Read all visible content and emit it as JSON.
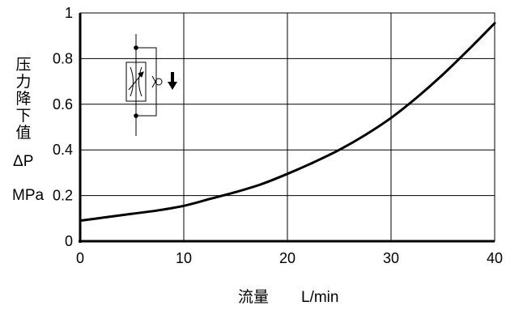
{
  "chart_data": {
    "type": "line",
    "xlabel_cn": "流量",
    "xlabel_unit": "L/min",
    "ylabel_cn": "压力降下值",
    "ylabel_symbol": "ΔP",
    "ylabel_unit": "MPa",
    "xlim": [
      0,
      40
    ],
    "ylim": [
      0,
      1
    ],
    "x_ticks": [
      "0",
      "10",
      "20",
      "30",
      "40"
    ],
    "y_ticks": [
      "0",
      "0.2",
      "0.4",
      "0.6",
      "0.8",
      "1"
    ],
    "grid": true,
    "series": [
      {
        "x": [
          0,
          2.5,
          5,
          7.5,
          10,
          12.5,
          15,
          17.5,
          20,
          22.5,
          25,
          27.5,
          30,
          32.5,
          35,
          37.5,
          40
        ],
        "y": [
          0.09,
          0.105,
          0.12,
          0.135,
          0.155,
          0.185,
          0.215,
          0.25,
          0.295,
          0.345,
          0.4,
          0.465,
          0.54,
          0.63,
          0.73,
          0.84,
          0.955
        ]
      }
    ],
    "colors": {
      "line": "#000000",
      "grid": "#000000",
      "axis": "#000000"
    },
    "inset_symbol": "check-valve-throttle-symbol"
  }
}
